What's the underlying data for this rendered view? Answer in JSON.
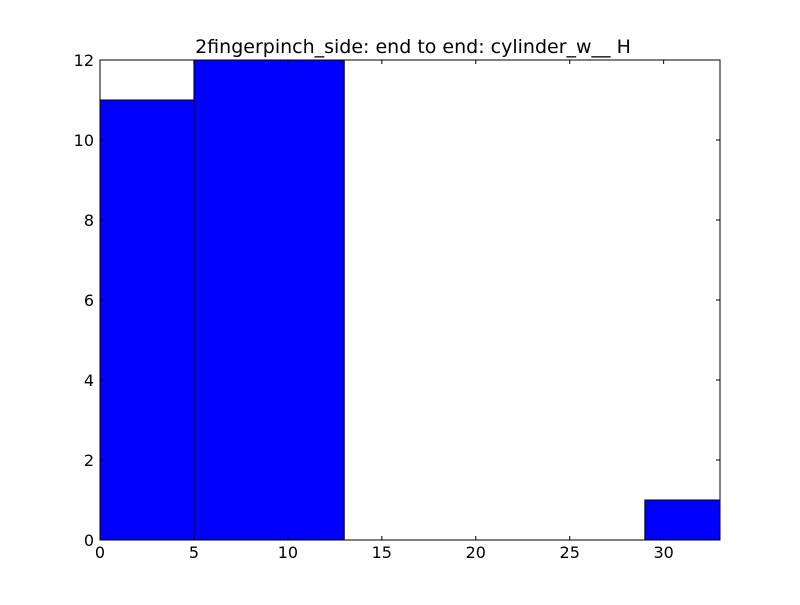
{
  "chart_data": {
    "type": "histogram",
    "title": "2fingerpinch_side: end to end: cylinder_w__ H",
    "xlabel": "",
    "ylabel": "",
    "xlim": [
      0,
      33
    ],
    "ylim": [
      0,
      12
    ],
    "x_ticks": [
      0,
      5,
      10,
      15,
      20,
      25,
      30
    ],
    "y_ticks": [
      0,
      2,
      4,
      6,
      8,
      10,
      12
    ],
    "bins": [
      {
        "x0": 0,
        "x1": 5,
        "count": 11
      },
      {
        "x0": 5,
        "x1": 13,
        "count": 12
      },
      {
        "x0": 29,
        "x1": 33,
        "count": 1
      }
    ],
    "bar_color": "#0000ff",
    "grid": false,
    "legend": "none"
  }
}
